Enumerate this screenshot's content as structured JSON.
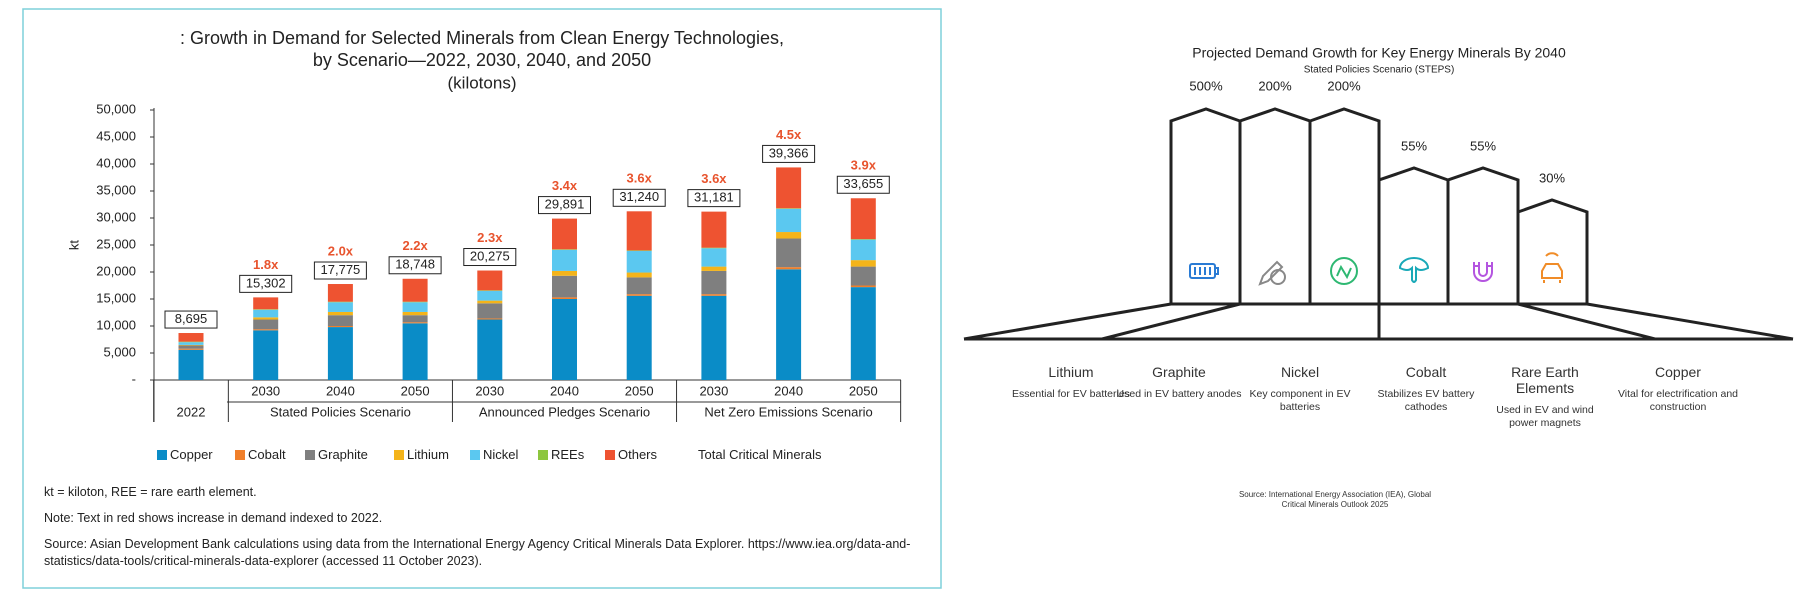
{
  "chart_data": {
    "type": "bar",
    "stacked": true,
    "title": [
      ": Growth in Demand for Selected Minerals from Clean Energy Technologies,",
      "by Scenario—2022, 2030, 2040, and 2050"
    ],
    "subtitle": "(kilotons)",
    "y_label": "kt",
    "categories": [
      "2022",
      "2030",
      "2040",
      "2050",
      "2030",
      "2040",
      "2050",
      "2030",
      "2040",
      "2050"
    ],
    "scenarios": [
      null,
      "Stated Policies Scenario",
      "Stated Policies Scenario",
      "Stated Policies Scenario",
      "Announced Pledges Scenario",
      "Announced Pledges Scenario",
      "Announced Pledges Scenario",
      "Net Zero Emissions Scenario",
      "Net Zero Emissions Scenario",
      "Net Zero Emissions Scenario"
    ],
    "series": [
      {
        "name": "Copper",
        "color": "#0a8cc7",
        "values": [
          5600,
          9200,
          9800,
          10500,
          11200,
          15000,
          15600,
          15600,
          20500,
          17200
        ]
      },
      {
        "name": "Cobalt",
        "color": "#f07f2a",
        "values": [
          200,
          200,
          200,
          200,
          200,
          300,
          300,
          300,
          400,
          300
        ]
      },
      {
        "name": "Graphite",
        "color": "#7f7f7f",
        "values": [
          600,
          1800,
          2000,
          1300,
          2800,
          4000,
          3100,
          4300,
          5300,
          3500
        ]
      },
      {
        "name": "Lithium",
        "color": "#f4b41a",
        "values": [
          100,
          400,
          600,
          600,
          500,
          900,
          900,
          800,
          1200,
          1200
        ]
      },
      {
        "name": "Nickel",
        "color": "#5bc8f0",
        "values": [
          500,
          1400,
          1800,
          1800,
          1800,
          3900,
          4000,
          3400,
          4300,
          3800
        ]
      },
      {
        "name": "REEs",
        "color": "#8dc63f",
        "values": [
          100,
          100,
          100,
          100,
          100,
          100,
          100,
          100,
          100,
          100
        ]
      },
      {
        "name": "Others",
        "color": "#ee5331",
        "values": [
          1600,
          2200,
          3275,
          4248,
          3675,
          5691,
          7240,
          6681,
          7566,
          7555
        ]
      }
    ],
    "totals": {
      "name": "Total Critical Minerals",
      "values": [
        8695,
        15302,
        17775,
        18748,
        20275,
        29891,
        31240,
        31181,
        39366,
        33655
      ],
      "value_labels": [
        "8,695",
        "15,302",
        "17,775",
        "18,748",
        "20,275",
        "29,891",
        "31,240",
        "31,181",
        "39,366",
        "33,655"
      ]
    },
    "annotations": [
      null,
      "1.8x",
      "2.0x",
      "2.2x",
      "2.3x",
      "3.4x",
      "3.6x",
      "3.6x",
      "4.5x",
      "3.9x"
    ],
    "annotation_color": "#e8542e",
    "ylim": [
      0,
      50000
    ],
    "yticks": [
      {
        "value": 0,
        "label": "-"
      },
      {
        "value": 5000,
        "label": "5,000"
      },
      {
        "value": 10000,
        "label": "10,000"
      },
      {
        "value": 15000,
        "label": "15,000"
      },
      {
        "value": 20000,
        "label": "20,000"
      },
      {
        "value": 25000,
        "label": "25,000"
      },
      {
        "value": 30000,
        "label": "30,000"
      },
      {
        "value": 35000,
        "label": "35,000"
      },
      {
        "value": 40000,
        "label": "40,000"
      },
      {
        "value": 45000,
        "label": "45,000"
      },
      {
        "value": 50000,
        "label": "50,000"
      }
    ],
    "grid": false,
    "legend": "bottom",
    "notes": [
      "kt = kiloton, REE = rare earth element.",
      "Note: Text in red shows increase in demand indexed to 2022.",
      "Source: Asian Development Bank calculations using data from the International Energy Agency Critical Minerals Data Explorer. https://www.iea.org/data-and-statistics/data-tools/critical-minerals-data-explorer (accessed 11 October 2023)."
    ]
  },
  "infographic": {
    "title": "Projected Demand Growth for Key Energy Minerals By 2040",
    "subtitle": "Stated Policies Scenario (STEPS)",
    "items": [
      {
        "name": "Lithium",
        "growth": "500%",
        "description": "Essential for EV batteries"
      },
      {
        "name": "Graphite",
        "growth": "200%",
        "description": "Used in EV battery anodes"
      },
      {
        "name": "Nickel",
        "growth": "200%",
        "description": "Key component in EV batteries"
      },
      {
        "name": "Cobalt",
        "growth": "55%",
        "description": "Stabilizes EV battery cathodes"
      },
      {
        "name": "Rare Earth Elements",
        "growth": "55%",
        "description": "Used in EV and wind power magnets"
      },
      {
        "name": "Copper",
        "growth": "30%",
        "description": "Vital for electrification and construction"
      }
    ],
    "source": "Source: International Energy Association (IEA), Global Critical Minerals Outlook 2025"
  }
}
